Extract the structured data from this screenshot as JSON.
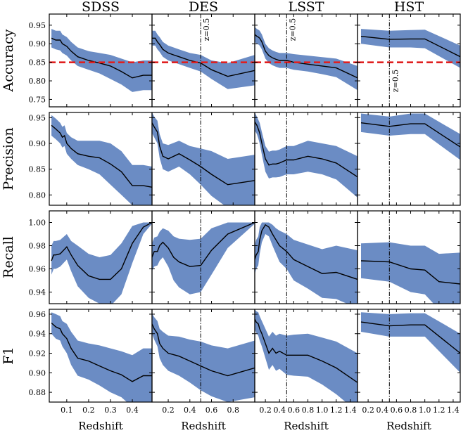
{
  "chart_data": {
    "type": "line",
    "title": "",
    "columns": [
      "SDSS",
      "DES",
      "LSST",
      "HST"
    ],
    "rows": [
      "Accuracy",
      "Precision",
      "Recall",
      "F1"
    ],
    "xlabel": "Redshift",
    "colors": {
      "band": "#6b8cc4",
      "line": "#000000",
      "threshold": "#e02020",
      "marker": "#000000"
    },
    "x_axes": [
      {
        "xlim": [
          0.02,
          0.49
        ],
        "ticks": [
          0.1,
          0.2,
          0.3,
          0.4
        ],
        "tick_labels": [
          "0.1",
          "0.2",
          "0.3",
          "0.4"
        ]
      },
      {
        "xlim": [
          0.05,
          1.0
        ],
        "ticks": [
          0.2,
          0.4,
          0.6,
          0.8
        ],
        "tick_labels": [
          "0.2",
          "0.4",
          "0.6",
          "0.8"
        ]
      },
      {
        "xlim": [
          0.05,
          1.5
        ],
        "ticks": [
          0.2,
          0.4,
          0.6,
          0.8,
          1.0,
          1.2,
          1.4
        ],
        "tick_labels": [
          "0.2",
          "0.4",
          "0.6",
          "0.8",
          "1.0",
          "1.2",
          "1.4"
        ]
      },
      {
        "xlim": [
          0.05,
          1.5
        ],
        "ticks": [
          0.2,
          0.4,
          0.6,
          0.8,
          1.0,
          1.2,
          1.4
        ],
        "tick_labels": [
          "0.2",
          "0.4",
          "0.6",
          "0.8",
          "1.0",
          "1.2",
          "1.4"
        ]
      }
    ],
    "y_axes": [
      {
        "ylim": [
          0.73,
          0.98
        ],
        "ticks": [
          0.75,
          0.8,
          0.85,
          0.9,
          0.95
        ],
        "tick_labels": [
          "0.75",
          "0.80",
          "0.85",
          "0.90",
          "0.95"
        ]
      },
      {
        "ylim": [
          0.78,
          0.96
        ],
        "ticks": [
          0.8,
          0.85,
          0.9,
          0.95
        ],
        "tick_labels": [
          "0.80",
          "0.85",
          "0.90",
          "0.95"
        ]
      },
      {
        "ylim": [
          0.93,
          1.01
        ],
        "ticks": [
          0.94,
          0.96,
          0.98,
          1.0
        ],
        "tick_labels": [
          "0.94",
          "0.96",
          "0.98",
          "1.00"
        ]
      },
      {
        "ylim": [
          0.87,
          0.965
        ],
        "ticks": [
          0.88,
          0.9,
          0.92,
          0.94,
          0.96
        ],
        "tick_labels": [
          "0.88",
          "0.90",
          "0.92",
          "0.94",
          "0.96"
        ]
      }
    ],
    "threshold": {
      "row": "Accuracy",
      "value": 0.85,
      "style": "dashed"
    },
    "redshift_marker": {
      "value": 0.5,
      "label": "z=0.5",
      "columns": [
        "DES",
        "LSST",
        "HST"
      ],
      "label_row": "Accuracy"
    },
    "series": {
      "SDSS": {
        "Accuracy": {
          "x": [
            0.03,
            0.05,
            0.07,
            0.08,
            0.1,
            0.12,
            0.15,
            0.2,
            0.25,
            0.3,
            0.35,
            0.4,
            0.45,
            0.49
          ],
          "y": [
            0.915,
            0.91,
            0.91,
            0.9,
            0.893,
            0.88,
            0.865,
            0.855,
            0.848,
            0.84,
            0.825,
            0.808,
            0.815,
            0.815
          ],
          "lo": [
            0.89,
            0.885,
            0.882,
            0.875,
            0.868,
            0.855,
            0.84,
            0.83,
            0.82,
            0.805,
            0.79,
            0.77,
            0.775,
            0.775
          ],
          "hi": [
            0.94,
            0.935,
            0.935,
            0.925,
            0.918,
            0.905,
            0.89,
            0.88,
            0.875,
            0.87,
            0.86,
            0.85,
            0.855,
            0.855
          ]
        },
        "Precision": {
          "x": [
            0.03,
            0.05,
            0.07,
            0.08,
            0.09,
            0.1,
            0.12,
            0.15,
            0.2,
            0.25,
            0.3,
            0.35,
            0.4,
            0.45,
            0.49
          ],
          "y": [
            0.935,
            0.928,
            0.92,
            0.912,
            0.915,
            0.9,
            0.89,
            0.88,
            0.875,
            0.872,
            0.86,
            0.845,
            0.818,
            0.818,
            0.815
          ],
          "lo": [
            0.915,
            0.908,
            0.9,
            0.892,
            0.895,
            0.88,
            0.87,
            0.858,
            0.85,
            0.84,
            0.82,
            0.8,
            0.78,
            0.778,
            0.778
          ],
          "hi": [
            0.955,
            0.948,
            0.94,
            0.932,
            0.935,
            0.92,
            0.912,
            0.905,
            0.905,
            0.905,
            0.9,
            0.885,
            0.858,
            0.858,
            0.855
          ]
        },
        "Recall": {
          "x": [
            0.03,
            0.04,
            0.05,
            0.07,
            0.1,
            0.12,
            0.15,
            0.2,
            0.25,
            0.3,
            0.35,
            0.4,
            0.45,
            0.49
          ],
          "y": [
            0.967,
            0.972,
            0.972,
            0.973,
            0.979,
            0.972,
            0.963,
            0.954,
            0.951,
            0.951,
            0.96,
            0.982,
            0.996,
            1.0
          ],
          "lo": [
            0.955,
            0.96,
            0.96,
            0.962,
            0.968,
            0.958,
            0.945,
            0.935,
            0.93,
            0.928,
            0.938,
            0.965,
            0.99,
            0.999
          ],
          "hi": [
            0.98,
            0.984,
            0.984,
            0.985,
            0.99,
            0.984,
            0.98,
            0.973,
            0.97,
            0.972,
            0.982,
            0.997,
            1.0,
            1.0
          ]
        },
        "F1": {
          "x": [
            0.03,
            0.05,
            0.07,
            0.08,
            0.1,
            0.12,
            0.15,
            0.2,
            0.25,
            0.3,
            0.35,
            0.4,
            0.45,
            0.49
          ],
          "y": [
            0.951,
            0.947,
            0.945,
            0.94,
            0.935,
            0.925,
            0.915,
            0.912,
            0.907,
            0.902,
            0.898,
            0.891,
            0.897,
            0.897
          ],
          "lo": [
            0.94,
            0.935,
            0.933,
            0.927,
            0.92,
            0.908,
            0.897,
            0.893,
            0.887,
            0.88,
            0.875,
            0.865,
            0.87,
            0.87
          ],
          "hi": [
            0.962,
            0.96,
            0.958,
            0.953,
            0.95,
            0.942,
            0.933,
            0.93,
            0.928,
            0.925,
            0.922,
            0.918,
            0.925,
            0.925
          ]
        }
      },
      "DES": {
        "Accuracy": {
          "x": [
            0.05,
            0.08,
            0.1,
            0.12,
            0.15,
            0.2,
            0.25,
            0.3,
            0.4,
            0.5,
            0.6,
            0.75,
            1.0
          ],
          "y": [
            0.915,
            0.915,
            0.905,
            0.898,
            0.885,
            0.875,
            0.87,
            0.865,
            0.855,
            0.848,
            0.83,
            0.812,
            0.828
          ],
          "lo": [
            0.895,
            0.895,
            0.885,
            0.878,
            0.865,
            0.855,
            0.85,
            0.845,
            0.835,
            0.825,
            0.805,
            0.778,
            0.788
          ],
          "hi": [
            0.935,
            0.935,
            0.925,
            0.918,
            0.905,
            0.895,
            0.89,
            0.885,
            0.875,
            0.87,
            0.855,
            0.848,
            0.87
          ]
        },
        "Precision": {
          "x": [
            0.05,
            0.07,
            0.1,
            0.12,
            0.15,
            0.2,
            0.3,
            0.4,
            0.5,
            0.6,
            0.75,
            1.0
          ],
          "y": [
            0.94,
            0.932,
            0.922,
            0.895,
            0.875,
            0.87,
            0.88,
            0.868,
            0.855,
            0.84,
            0.82,
            0.828
          ],
          "lo": [
            0.92,
            0.912,
            0.9,
            0.872,
            0.85,
            0.845,
            0.855,
            0.84,
            0.82,
            0.798,
            0.775,
            0.78
          ],
          "hi": [
            0.96,
            0.952,
            0.944,
            0.918,
            0.9,
            0.897,
            0.905,
            0.895,
            0.89,
            0.885,
            0.87,
            0.878
          ]
        },
        "Recall": {
          "x": [
            0.05,
            0.07,
            0.1,
            0.12,
            0.15,
            0.2,
            0.25,
            0.3,
            0.4,
            0.5,
            0.6,
            0.75,
            1.0
          ],
          "y": [
            0.97,
            0.975,
            0.975,
            0.98,
            0.983,
            0.978,
            0.97,
            0.966,
            0.962,
            0.963,
            0.976,
            0.99,
            1.0
          ],
          "lo": [
            0.958,
            0.962,
            0.963,
            0.967,
            0.97,
            0.962,
            0.95,
            0.944,
            0.938,
            0.94,
            0.955,
            0.978,
            0.999
          ],
          "hi": [
            0.982,
            0.987,
            0.988,
            0.992,
            0.995,
            0.993,
            0.988,
            0.986,
            0.985,
            0.986,
            0.995,
            1.0,
            1.0
          ]
        },
        "F1": {
          "x": [
            0.05,
            0.07,
            0.1,
            0.12,
            0.15,
            0.2,
            0.3,
            0.4,
            0.5,
            0.6,
            0.75,
            1.0
          ],
          "y": [
            0.95,
            0.945,
            0.94,
            0.93,
            0.925,
            0.92,
            0.917,
            0.912,
            0.907,
            0.902,
            0.897,
            0.905
          ],
          "lo": [
            0.94,
            0.934,
            0.927,
            0.915,
            0.908,
            0.902,
            0.897,
            0.89,
            0.882,
            0.876,
            0.87,
            0.875
          ],
          "hi": [
            0.961,
            0.957,
            0.953,
            0.945,
            0.942,
            0.938,
            0.937,
            0.934,
            0.932,
            0.928,
            0.925,
            0.933
          ]
        }
      },
      "LSST": {
        "Accuracy": {
          "x": [
            0.05,
            0.08,
            0.1,
            0.12,
            0.15,
            0.2,
            0.25,
            0.3,
            0.35,
            0.4,
            0.5,
            0.6,
            0.8,
            1.0,
            1.2,
            1.5
          ],
          "y": [
            0.925,
            0.92,
            0.918,
            0.915,
            0.905,
            0.88,
            0.868,
            0.862,
            0.858,
            0.855,
            0.855,
            0.85,
            0.845,
            0.84,
            0.835,
            0.808
          ],
          "lo": [
            0.905,
            0.9,
            0.898,
            0.895,
            0.885,
            0.86,
            0.848,
            0.842,
            0.838,
            0.835,
            0.835,
            0.83,
            0.825,
            0.818,
            0.81,
            0.775
          ],
          "hi": [
            0.945,
            0.94,
            0.938,
            0.935,
            0.925,
            0.9,
            0.888,
            0.882,
            0.878,
            0.875,
            0.875,
            0.872,
            0.868,
            0.864,
            0.86,
            0.84
          ]
        },
        "Precision": {
          "x": [
            0.05,
            0.08,
            0.1,
            0.12,
            0.15,
            0.2,
            0.25,
            0.3,
            0.35,
            0.4,
            0.5,
            0.6,
            0.8,
            1.0,
            1.2,
            1.5
          ],
          "y": [
            0.942,
            0.935,
            0.928,
            0.92,
            0.9,
            0.87,
            0.858,
            0.86,
            0.86,
            0.862,
            0.868,
            0.868,
            0.875,
            0.87,
            0.862,
            0.835
          ],
          "lo": [
            0.925,
            0.918,
            0.91,
            0.9,
            0.878,
            0.845,
            0.832,
            0.834,
            0.834,
            0.835,
            0.84,
            0.84,
            0.845,
            0.84,
            0.83,
            0.795
          ],
          "hi": [
            0.96,
            0.952,
            0.946,
            0.94,
            0.922,
            0.895,
            0.884,
            0.886,
            0.886,
            0.888,
            0.895,
            0.895,
            0.905,
            0.9,
            0.895,
            0.875
          ]
        },
        "Recall": {
          "x": [
            0.05,
            0.07,
            0.1,
            0.12,
            0.15,
            0.2,
            0.25,
            0.3,
            0.35,
            0.4,
            0.5,
            0.6,
            0.8,
            1.0,
            1.2,
            1.5
          ],
          "y": [
            0.968,
            0.972,
            0.975,
            0.985,
            0.993,
            0.998,
            0.996,
            0.99,
            0.985,
            0.98,
            0.975,
            0.968,
            0.962,
            0.956,
            0.957,
            0.951
          ],
          "lo": [
            0.955,
            0.96,
            0.963,
            0.973,
            0.983,
            0.99,
            0.988,
            0.98,
            0.973,
            0.966,
            0.96,
            0.95,
            0.943,
            0.935,
            0.934,
            0.926
          ],
          "hi": [
            0.98,
            0.985,
            0.988,
            0.996,
            1.0,
            1.0,
            1.0,
            0.998,
            0.995,
            0.993,
            0.99,
            0.985,
            0.981,
            0.977,
            0.98,
            0.976
          ]
        },
        "F1": {
          "x": [
            0.05,
            0.07,
            0.1,
            0.12,
            0.15,
            0.2,
            0.25,
            0.3,
            0.35,
            0.4,
            0.5,
            0.6,
            0.8,
            1.0,
            1.2,
            1.5
          ],
          "y": [
            0.955,
            0.952,
            0.95,
            0.945,
            0.94,
            0.93,
            0.92,
            0.925,
            0.92,
            0.922,
            0.918,
            0.918,
            0.918,
            0.912,
            0.905,
            0.89
          ],
          "lo": [
            0.945,
            0.941,
            0.938,
            0.933,
            0.927,
            0.915,
            0.903,
            0.908,
            0.902,
            0.904,
            0.898,
            0.897,
            0.896,
            0.888,
            0.878,
            0.86
          ],
          "hi": [
            0.965,
            0.963,
            0.962,
            0.958,
            0.953,
            0.945,
            0.937,
            0.942,
            0.938,
            0.94,
            0.938,
            0.939,
            0.94,
            0.936,
            0.932,
            0.92
          ]
        }
      },
      "HST": {
        "Accuracy": {
          "x": [
            0.1,
            0.5,
            0.8,
            1.0,
            1.5
          ],
          "y": [
            0.92,
            0.912,
            0.913,
            0.913,
            0.865
          ],
          "lo": [
            0.9,
            0.89,
            0.89,
            0.888,
            0.835
          ],
          "hi": [
            0.94,
            0.935,
            0.937,
            0.938,
            0.895
          ]
        },
        "Precision": {
          "x": [
            0.1,
            0.5,
            0.8,
            1.0,
            1.5
          ],
          "y": [
            0.94,
            0.933,
            0.938,
            0.938,
            0.893
          ],
          "lo": [
            0.922,
            0.915,
            0.918,
            0.918,
            0.868
          ],
          "hi": [
            0.958,
            0.952,
            0.958,
            0.958,
            0.918
          ]
        },
        "Recall": {
          "x": [
            0.1,
            0.5,
            0.8,
            1.0,
            1.2,
            1.5
          ],
          "y": [
            0.967,
            0.966,
            0.96,
            0.959,
            0.949,
            0.947
          ],
          "lo": [
            0.952,
            0.949,
            0.94,
            0.938,
            0.925,
            0.92
          ],
          "hi": [
            0.982,
            0.983,
            0.98,
            0.98,
            0.973,
            0.974
          ]
        },
        "F1": {
          "x": [
            0.1,
            0.5,
            0.8,
            1.0,
            1.5
          ],
          "y": [
            0.952,
            0.948,
            0.949,
            0.949,
            0.92
          ],
          "lo": [
            0.942,
            0.937,
            0.937,
            0.937,
            0.9
          ],
          "hi": [
            0.962,
            0.96,
            0.961,
            0.961,
            0.94
          ]
        }
      }
    }
  }
}
